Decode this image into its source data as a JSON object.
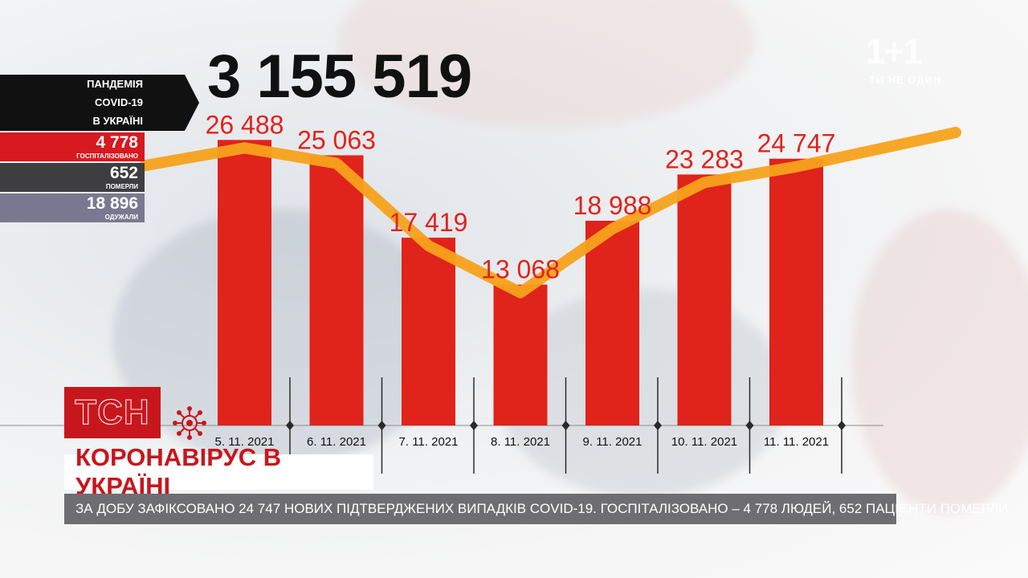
{
  "header": {
    "total_cases": "3 155 519"
  },
  "side_panel": {
    "title_lines": [
      "ПАНДЕМІЯ",
      "COVID-19",
      "В УКРАЇНІ"
    ],
    "stats": [
      {
        "value": "4 778",
        "label": "ГОСПІТАЛІЗОВАНО",
        "color": "#d71920"
      },
      {
        "value": "652",
        "label": "ПОМЕРЛИ",
        "color": "#3e3e40"
      },
      {
        "value": "18 896",
        "label": "ОДУЖАЛИ",
        "color": "#7a7890"
      }
    ]
  },
  "logo": {
    "channel": "1+1",
    "slogan": "ТИ НЕ ОДИН"
  },
  "tsn": {
    "label": "ТСН",
    "icon": "virus-icon"
  },
  "headline": "КОРОНАВІРУС В УКРАЇНІ",
  "ticker": "ЗА ДОБУ ЗАФІКСОВАНО 24 747 НОВИХ ПІДТВЕРДЖЕНИХ ВИПАДКІВ COVID-19. ГОСПІТАЛІЗОВАНО – 4 778 ЛЮДЕЙ, 652 ПАЦІЄНТИ ПОМЕРЛИ",
  "colors": {
    "bar": "#e0231b",
    "label": "#e0231b",
    "trend": "#f7a21b",
    "brand_red": "#c8161d"
  },
  "chart_data": {
    "type": "bar",
    "categories": [
      "5. 11. 2021",
      "6. 11. 2021",
      "7. 11. 2021",
      "8. 11. 2021",
      "9. 11. 2021",
      "10. 11. 2021",
      "11. 11. 2021"
    ],
    "values": [
      26488,
      25063,
      17419,
      13068,
      18988,
      23283,
      24747
    ],
    "value_labels": [
      "26 488",
      "25 063",
      "17 419",
      "13 068",
      "18 988",
      "23 283",
      "24 747"
    ],
    "trend_line": true,
    "ylim": [
      0,
      35000
    ],
    "grid": false
  }
}
